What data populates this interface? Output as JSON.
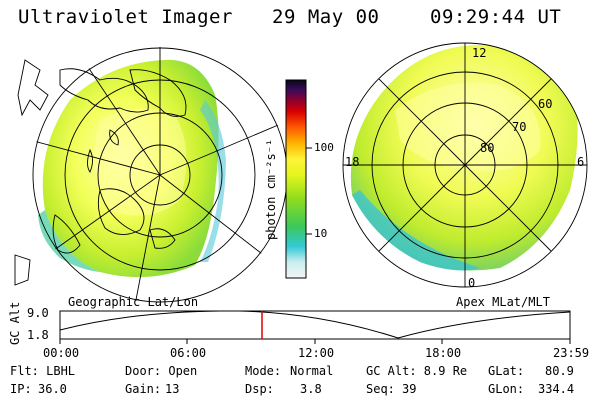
{
  "header": {
    "instrument": "Ultraviolet Imager",
    "date": "29 May 00",
    "time": "09:29:44 UT"
  },
  "colorbar": {
    "unit_label": "photon cm⁻²s⁻¹",
    "ticks": [
      "100",
      "10"
    ]
  },
  "left_panel": {
    "caption": "Geographic Lat/Lon"
  },
  "right_panel": {
    "caption": "Apex MLat/MLT",
    "mlt_labels": [
      "12",
      "18",
      "6",
      "0"
    ],
    "lat_labels": [
      "60",
      "70",
      "80"
    ]
  },
  "altitude_plot": {
    "axis_label": "GC Alt",
    "y_ticks": [
      "9.0",
      "1.8"
    ],
    "x_ticks": [
      "00:00",
      "06:00",
      "12:00",
      "18:00",
      "23:59"
    ],
    "marker_time": "09:29:44"
  },
  "info": {
    "flt": "Flt: LBHL",
    "door": "Door: Open",
    "mode_label": "Mode:",
    "mode_value": "Normal",
    "gc_alt": "GC Alt: 8.9 Re",
    "glat_label": "GLat:",
    "glat_value": "80.9",
    "ip_label": "IP:",
    "ip_value": "36.0",
    "gain_label": "Gain:",
    "gain_value": "13",
    "dsp_label": "Dsp:",
    "dsp_value": "3.8",
    "seq_label": "Seq:",
    "seq_value": "39",
    "glon_label": "GLon:",
    "glon_value": "334.4"
  }
}
